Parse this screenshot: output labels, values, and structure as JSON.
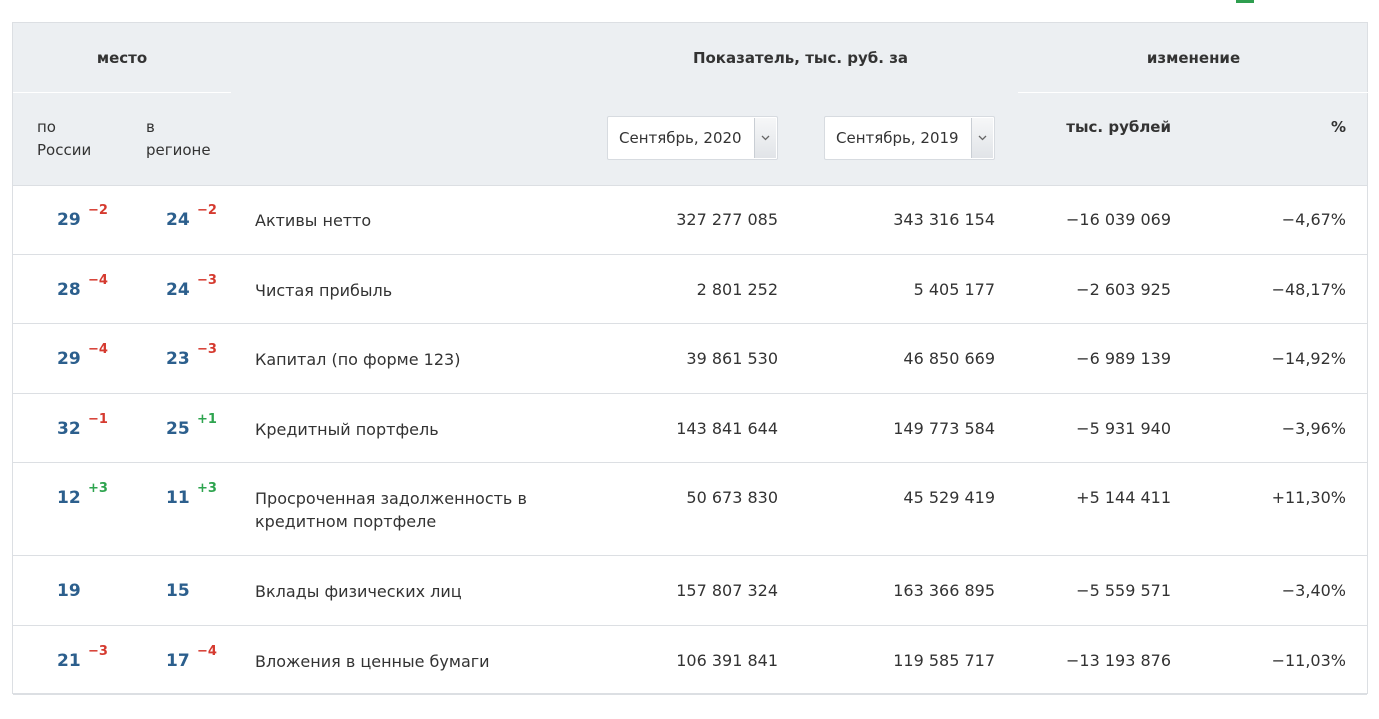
{
  "header": {
    "place_label": "место",
    "indicator_label": "Показатель, тыс. руб. за",
    "change_label": "изменение",
    "russia_label_1": "по",
    "russia_label_2": "России",
    "region_label_1": "в",
    "region_label_2": "регионе",
    "select_current": "Сентябрь, 2020",
    "select_previous": "Сентябрь, 2019",
    "change_abs_label": "тыс. рублей",
    "change_pct_label": "%"
  },
  "colors": {
    "accent_blue": "#2c5f8d",
    "negative": "#d53a2f",
    "positive": "#2ea44f",
    "header_bg": "#eceff2"
  },
  "rows": [
    {
      "rank_russia": "29",
      "delta_russia": "−2",
      "rank_region": "24",
      "delta_region": "−2",
      "name": "Активы нетто",
      "current": "327 277 085",
      "previous": "343 316 154",
      "change_abs": "−16 039 069",
      "change_pct": "−4,67%",
      "sign": "neg"
    },
    {
      "rank_russia": "28",
      "delta_russia": "−4",
      "rank_region": "24",
      "delta_region": "−3",
      "name": "Чистая прибыль",
      "current": "2 801 252",
      "previous": "5 405 177",
      "change_abs": "−2 603 925",
      "change_pct": "−48,17%",
      "sign": "neg"
    },
    {
      "rank_russia": "29",
      "delta_russia": "−4",
      "rank_region": "23",
      "delta_region": "−3",
      "name": "Капитал (по форме 123)",
      "current": "39 861 530",
      "previous": "46 850 669",
      "change_abs": "−6 989 139",
      "change_pct": "−14,92%",
      "sign": "neg"
    },
    {
      "rank_russia": "32",
      "delta_russia": "−1",
      "rank_region": "25",
      "delta_region": "+1",
      "name": "Кредитный портфель",
      "current": "143 841 644",
      "previous": "149 773 584",
      "change_abs": "−5 931 940",
      "change_pct": "−3,96%",
      "sign": "neg"
    },
    {
      "rank_russia": "12",
      "delta_russia": "+3",
      "rank_region": "11",
      "delta_region": "+3",
      "name": "Просроченная задолженность в кредитном портфеле",
      "current": "50 673 830",
      "previous": "45 529 419",
      "change_abs": "+5 144 411",
      "change_pct": "+11,30%",
      "sign": "pos"
    },
    {
      "rank_russia": "19",
      "delta_russia": "",
      "rank_region": "15",
      "delta_region": "",
      "name": "Вклады физических лиц",
      "current": "157 807 324",
      "previous": "163 366 895",
      "change_abs": "−5 559 571",
      "change_pct": "−3,40%",
      "sign": "neg"
    },
    {
      "rank_russia": "21",
      "delta_russia": "−3",
      "rank_region": "17",
      "delta_region": "−4",
      "name": "Вложения в ценные бумаги",
      "current": "106 391 841",
      "previous": "119 585 717",
      "change_abs": "−13 193 876",
      "change_pct": "−11,03%",
      "sign": "neg"
    }
  ]
}
